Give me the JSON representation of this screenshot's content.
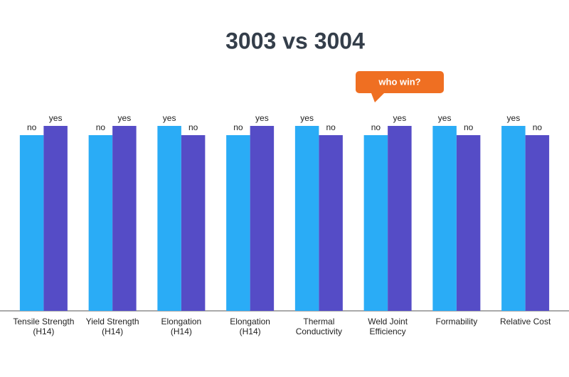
{
  "chart_data": {
    "type": "bar",
    "title": "3003 vs 3004",
    "annotation": "who win?",
    "categories": [
      [
        "Tensile Strength",
        "(H14)"
      ],
      [
        "Yield Strength",
        "(H14)"
      ],
      [
        "Elongation",
        "(H14)"
      ],
      [
        "Elongation",
        "(H14)"
      ],
      [
        "Thermal",
        "Conductivity"
      ],
      [
        "Weld Joint",
        "Efficiency"
      ],
      [
        "Formability"
      ],
      [
        "Relative Cost"
      ]
    ],
    "series": [
      {
        "color": "#2aacf6",
        "values": [
          95,
          95,
          100,
          95,
          100,
          95,
          100,
          100
        ],
        "value_labels": [
          "no",
          "no",
          "yes",
          "no",
          "yes",
          "no",
          "yes",
          "yes"
        ]
      },
      {
        "color": "#554cc6",
        "values": [
          100,
          100,
          95,
          100,
          95,
          100,
          95,
          95
        ],
        "value_labels": [
          "yes",
          "yes",
          "no",
          "yes",
          "no",
          "yes",
          "no",
          "no"
        ]
      }
    ],
    "ylim": [
      0,
      100
    ]
  }
}
